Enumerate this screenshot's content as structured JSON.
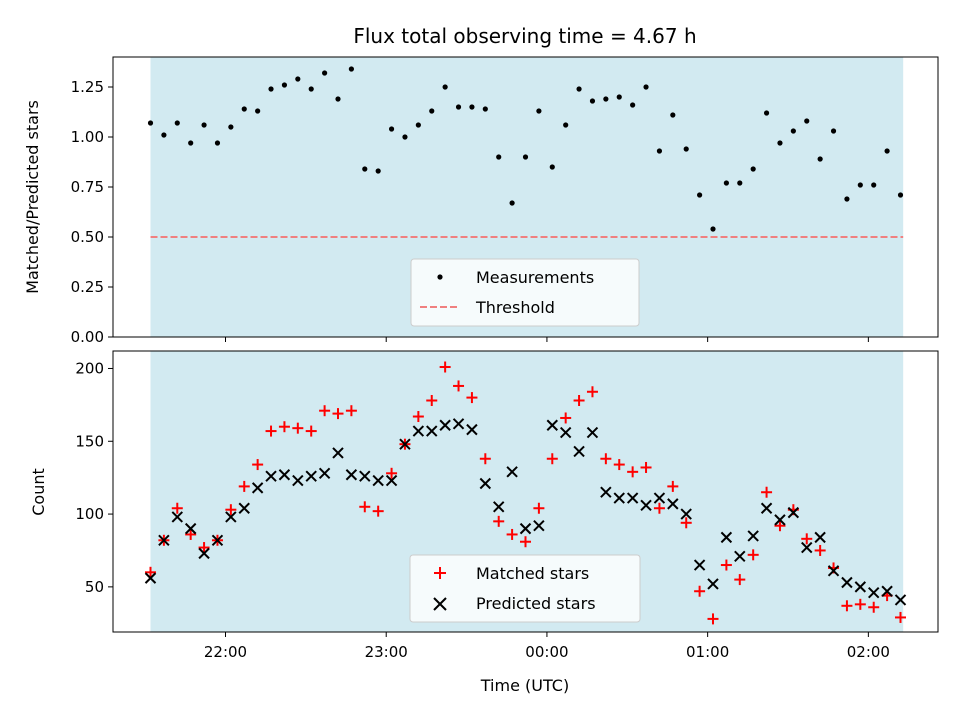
{
  "chart_data": [
    {
      "type": "scatter",
      "title": "Flux total observing time = 4.67 h",
      "xlabel": "",
      "ylabel": "Matched/Predicted stars",
      "ylim": [
        0,
        1.4
      ],
      "yticks": [
        "0.00",
        "0.25",
        "0.50",
        "0.75",
        "1.00",
        "1.25"
      ],
      "ytick_values": [
        0,
        0.25,
        0.5,
        0.75,
        1.0,
        1.25
      ],
      "shaded_range": [
        "21:32",
        "02:13"
      ],
      "shade_color": "#add8e6",
      "legend_placement": "lower center",
      "legend": [
        {
          "label": "Measurements",
          "marker": "dot",
          "color": "#000000"
        },
        {
          "label": "Threshold",
          "marker": "dashed-line",
          "color": "#f08080"
        }
      ],
      "threshold": 0.5,
      "series": [
        {
          "name": "Measurements",
          "color": "#000000",
          "points": [
            [
              "21:32",
              1.07
            ],
            [
              "21:37",
              1.01
            ],
            [
              "21:42",
              1.07
            ],
            [
              "21:47",
              0.97
            ],
            [
              "21:52",
              1.06
            ],
            [
              "21:57",
              0.97
            ],
            [
              "22:02",
              1.05
            ],
            [
              "22:07",
              1.14
            ],
            [
              "22:12",
              1.13
            ],
            [
              "22:17",
              1.24
            ],
            [
              "22:22",
              1.26
            ],
            [
              "22:27",
              1.29
            ],
            [
              "22:32",
              1.24
            ],
            [
              "22:37",
              1.32
            ],
            [
              "22:42",
              1.19
            ],
            [
              "22:47",
              1.34
            ],
            [
              "22:52",
              0.84
            ],
            [
              "22:57",
              0.83
            ],
            [
              "23:02",
              1.04
            ],
            [
              "23:07",
              1.0
            ],
            [
              "23:12",
              1.06
            ],
            [
              "23:17",
              1.13
            ],
            [
              "23:22",
              1.25
            ],
            [
              "23:27",
              1.15
            ],
            [
              "23:32",
              1.15
            ],
            [
              "23:37",
              1.14
            ],
            [
              "23:42",
              0.9
            ],
            [
              "23:47",
              0.67
            ],
            [
              "23:52",
              0.9
            ],
            [
              "23:57",
              1.13
            ],
            [
              "00:02",
              0.85
            ],
            [
              "00:07",
              1.06
            ],
            [
              "00:12",
              1.24
            ],
            [
              "00:17",
              1.18
            ],
            [
              "00:22",
              1.19
            ],
            [
              "00:27",
              1.2
            ],
            [
              "00:32",
              1.16
            ],
            [
              "00:37",
              1.25
            ],
            [
              "00:42",
              0.93
            ],
            [
              "00:47",
              1.11
            ],
            [
              "00:52",
              0.94
            ],
            [
              "00:57",
              0.71
            ],
            [
              "01:02",
              0.54
            ],
            [
              "01:07",
              0.77
            ],
            [
              "01:12",
              0.77
            ],
            [
              "01:17",
              0.84
            ],
            [
              "01:22",
              1.12
            ],
            [
              "01:27",
              0.97
            ],
            [
              "01:32",
              1.03
            ],
            [
              "01:37",
              1.08
            ],
            [
              "01:42",
              0.89
            ],
            [
              "01:47",
              1.03
            ],
            [
              "01:52",
              0.69
            ],
            [
              "01:57",
              0.76
            ],
            [
              "02:02",
              0.76
            ],
            [
              "02:07",
              0.93
            ],
            [
              "02:12",
              0.71
            ]
          ]
        }
      ]
    },
    {
      "type": "scatter",
      "title": "",
      "xlabel": "Time (UTC)",
      "ylabel": "Count",
      "ylim": [
        19,
        212
      ],
      "yticks": [
        "50",
        "100",
        "150",
        "200"
      ],
      "ytick_values": [
        50,
        100,
        150,
        200
      ],
      "xlim": [
        "21:18",
        "02:26"
      ],
      "xticks": [
        "22:00",
        "23:00",
        "00:00",
        "01:00",
        "02:00"
      ],
      "shaded_range": [
        "21:32",
        "02:13"
      ],
      "shade_color": "#add8e6",
      "legend_placement": "lower center",
      "legend": [
        {
          "label": "Matched stars",
          "marker": "plus",
          "color": "#ff0000"
        },
        {
          "label": "Predicted stars",
          "marker": "x",
          "color": "#000000"
        }
      ],
      "series": [
        {
          "name": "Matched stars",
          "color": "#ff0000",
          "points": [
            [
              "21:32",
              60
            ],
            [
              "21:37",
              82
            ],
            [
              "21:42",
              104
            ],
            [
              "21:47",
              86
            ],
            [
              "21:52",
              77
            ],
            [
              "21:57",
              82
            ],
            [
              "22:02",
              103
            ],
            [
              "22:07",
              119
            ],
            [
              "22:12",
              134
            ],
            [
              "22:17",
              157
            ],
            [
              "22:22",
              160
            ],
            [
              "22:27",
              159
            ],
            [
              "22:32",
              157
            ],
            [
              "22:37",
              171
            ],
            [
              "22:42",
              169
            ],
            [
              "22:47",
              171
            ],
            [
              "22:52",
              105
            ],
            [
              "22:57",
              102
            ],
            [
              "23:02",
              128
            ],
            [
              "23:07",
              148
            ],
            [
              "23:12",
              167
            ],
            [
              "23:17",
              178
            ],
            [
              "23:22",
              201
            ],
            [
              "23:27",
              188
            ],
            [
              "23:32",
              180
            ],
            [
              "23:37",
              138
            ],
            [
              "23:42",
              95
            ],
            [
              "23:47",
              86
            ],
            [
              "23:52",
              81
            ],
            [
              "23:57",
              104
            ],
            [
              "00:02",
              138
            ],
            [
              "00:07",
              166
            ],
            [
              "00:12",
              178
            ],
            [
              "00:17",
              184
            ],
            [
              "00:22",
              138
            ],
            [
              "00:27",
              134
            ],
            [
              "00:32",
              129
            ],
            [
              "00:37",
              132
            ],
            [
              "00:42",
              104
            ],
            [
              "00:47",
              119
            ],
            [
              "00:52",
              94
            ],
            [
              "00:57",
              47
            ],
            [
              "01:02",
              28
            ],
            [
              "01:07",
              65
            ],
            [
              "01:12",
              55
            ],
            [
              "01:17",
              72
            ],
            [
              "01:22",
              115
            ],
            [
              "01:27",
              92
            ],
            [
              "01:32",
              103
            ],
            [
              "01:37",
              83
            ],
            [
              "01:42",
              75
            ],
            [
              "01:47",
              63
            ],
            [
              "01:52",
              37
            ],
            [
              "01:57",
              38
            ],
            [
              "02:02",
              36
            ],
            [
              "02:07",
              44
            ],
            [
              "02:12",
              29
            ]
          ]
        },
        {
          "name": "Predicted stars",
          "color": "#000000",
          "points": [
            [
              "21:32",
              56
            ],
            [
              "21:37",
              82
            ],
            [
              "21:42",
              98
            ],
            [
              "21:47",
              90
            ],
            [
              "21:52",
              73
            ],
            [
              "21:57",
              82
            ],
            [
              "22:02",
              98
            ],
            [
              "22:07",
              104
            ],
            [
              "22:12",
              118
            ],
            [
              "22:17",
              126
            ],
            [
              "22:22",
              127
            ],
            [
              "22:27",
              123
            ],
            [
              "22:32",
              126
            ],
            [
              "22:37",
              128
            ],
            [
              "22:42",
              142
            ],
            [
              "22:47",
              127
            ],
            [
              "22:52",
              126
            ],
            [
              "22:57",
              123
            ],
            [
              "23:02",
              123
            ],
            [
              "23:07",
              148
            ],
            [
              "23:12",
              157
            ],
            [
              "23:17",
              157
            ],
            [
              "23:22",
              161
            ],
            [
              "23:27",
              162
            ],
            [
              "23:32",
              158
            ],
            [
              "23:37",
              121
            ],
            [
              "23:42",
              105
            ],
            [
              "23:47",
              129
            ],
            [
              "23:52",
              90
            ],
            [
              "23:57",
              92
            ],
            [
              "00:02",
              161
            ],
            [
              "00:07",
              156
            ],
            [
              "00:12",
              143
            ],
            [
              "00:17",
              156
            ],
            [
              "00:22",
              115
            ],
            [
              "00:27",
              111
            ],
            [
              "00:32",
              111
            ],
            [
              "00:37",
              106
            ],
            [
              "00:42",
              111
            ],
            [
              "00:47",
              107
            ],
            [
              "00:52",
              100
            ],
            [
              "00:57",
              65
            ],
            [
              "01:02",
              52
            ],
            [
              "01:07",
              84
            ],
            [
              "01:12",
              71
            ],
            [
              "01:17",
              85
            ],
            [
              "01:22",
              104
            ],
            [
              "01:27",
              96
            ],
            [
              "01:32",
              101
            ],
            [
              "01:37",
              77
            ],
            [
              "01:42",
              84
            ],
            [
              "01:47",
              61
            ],
            [
              "01:52",
              53
            ],
            [
              "01:57",
              50
            ],
            [
              "02:02",
              46
            ],
            [
              "02:07",
              47
            ],
            [
              "02:12",
              41
            ]
          ]
        }
      ]
    }
  ]
}
